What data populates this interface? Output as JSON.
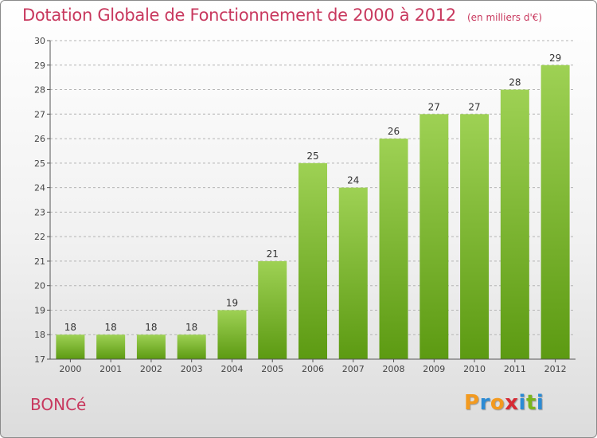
{
  "title": "Dotation Globale de Fonctionnement de 2000 à 2012",
  "subtitle": "(en milliers d'€)",
  "commune": "BONCé",
  "logo": {
    "text": "Proxiti",
    "letters": [
      "P",
      "r",
      "o",
      "x",
      "i",
      "t",
      "i"
    ],
    "colors": [
      "#f39a1f",
      "#2c8bd4",
      "#f39a1f",
      "#d62b35",
      "#2c8bd4",
      "#7ab51d",
      "#2c8bd4"
    ]
  },
  "colors": {
    "title": "#c8385e",
    "bar_top": "#9ed154",
    "bar_bottom": "#5c9a12",
    "axis": "#555555",
    "grid": "#b4b4b4"
  },
  "chart_data": {
    "type": "bar",
    "title": "Dotation Globale de Fonctionnement de 2000 à 2012",
    "subtitle": "(en milliers d'€)",
    "categories": [
      "2000",
      "2001",
      "2002",
      "2003",
      "2004",
      "2005",
      "2006",
      "2007",
      "2008",
      "2009",
      "2010",
      "2011",
      "2012"
    ],
    "values": [
      18,
      18,
      18,
      18,
      19,
      21,
      25,
      24,
      26,
      27,
      27,
      28,
      29
    ],
    "yticks": [
      17,
      18,
      19,
      20,
      21,
      22,
      23,
      24,
      25,
      26,
      27,
      28,
      29,
      30
    ],
    "ylim": [
      17,
      30
    ],
    "grid": true,
    "data_labels": true
  }
}
